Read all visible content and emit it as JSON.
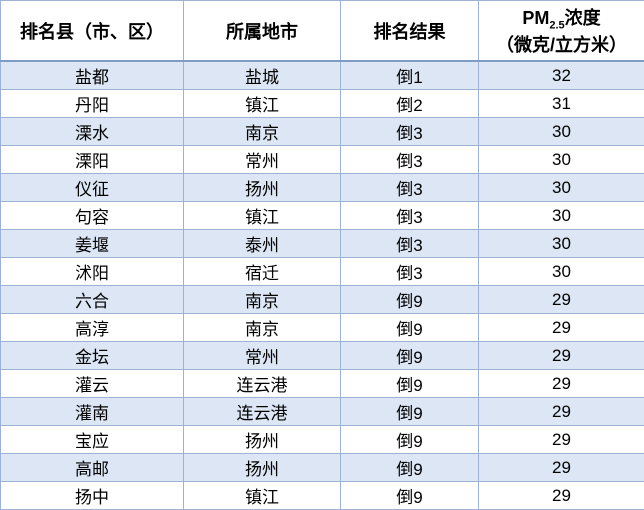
{
  "table": {
    "header": [
      "排名县（市、区）",
      "所属地市",
      "排名结果",
      {
        "main": "PM",
        "sub": "2.5",
        "rest": "浓度",
        "unit": "（微克/立方米）"
      }
    ],
    "rows": [
      [
        "盐都",
        "盐城",
        "倒1",
        32
      ],
      [
        "丹阳",
        "镇江",
        "倒2",
        31
      ],
      [
        "溧水",
        "南京",
        "倒3",
        30
      ],
      [
        "溧阳",
        "常州",
        "倒3",
        30
      ],
      [
        "仪征",
        "扬州",
        "倒3",
        30
      ],
      [
        "句容",
        "镇江",
        "倒3",
        30
      ],
      [
        "姜堰",
        "泰州",
        "倒3",
        30
      ],
      [
        "沭阳",
        "宿迁",
        "倒3",
        30
      ],
      [
        "六合",
        "南京",
        "倒9",
        29
      ],
      [
        "高淳",
        "南京",
        "倒9",
        29
      ],
      [
        "金坛",
        "常州",
        "倒9",
        29
      ],
      [
        "灌云",
        "连云港",
        "倒9",
        29
      ],
      [
        "灌南",
        "连云港",
        "倒9",
        29
      ],
      [
        "宝应",
        "扬州",
        "倒9",
        29
      ],
      [
        "高邮",
        "扬州",
        "倒9",
        29
      ],
      [
        "扬中",
        "镇江",
        "倒9",
        29
      ]
    ]
  }
}
